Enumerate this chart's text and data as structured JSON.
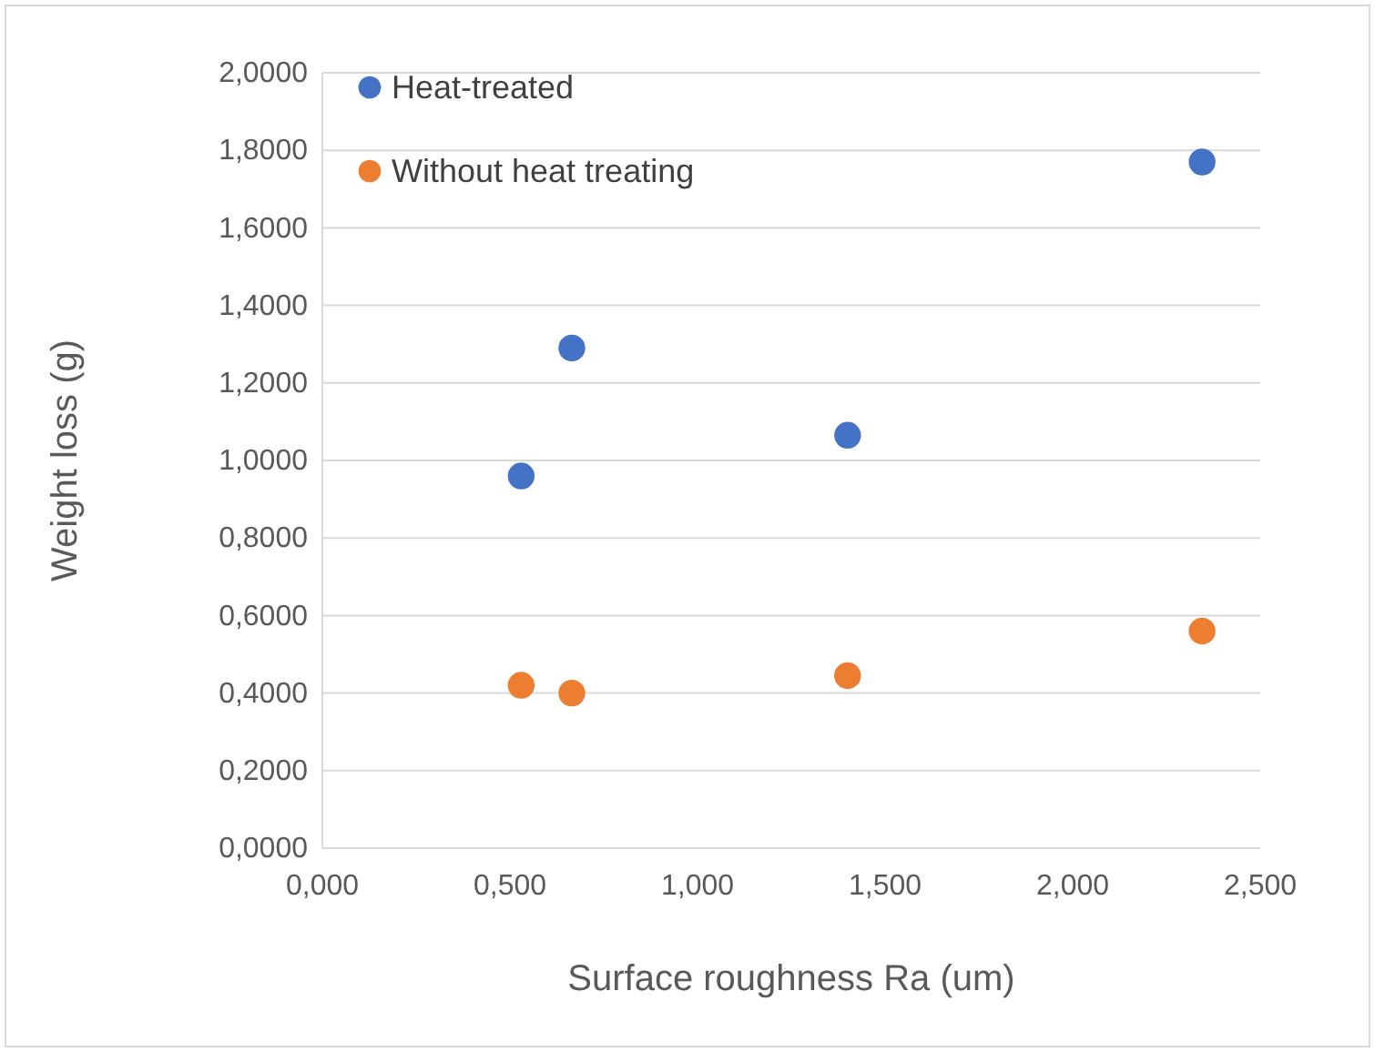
{
  "chart_data": {
    "type": "scatter",
    "xlabel": "Surface roughness Ra (um)",
    "ylabel": "Weight loss (g)",
    "xlim": [
      0,
      2.5
    ],
    "ylim": [
      0,
      2
    ],
    "xticks": [
      {
        "value": 0,
        "label": "0,000"
      },
      {
        "value": 0.5,
        "label": "0,500"
      },
      {
        "value": 1,
        "label": "1,000"
      },
      {
        "value": 1.5,
        "label": "1,500"
      },
      {
        "value": 2,
        "label": "2,000"
      },
      {
        "value": 2.5,
        "label": "2,500"
      }
    ],
    "yticks": [
      {
        "value": 0,
        "label": "0,0000"
      },
      {
        "value": 0.2,
        "label": "0,2000"
      },
      {
        "value": 0.4,
        "label": "0,4000"
      },
      {
        "value": 0.6,
        "label": "0,6000"
      },
      {
        "value": 0.8,
        "label": "0,8000"
      },
      {
        "value": 1,
        "label": "1,0000"
      },
      {
        "value": 1.2,
        "label": "1,2000"
      },
      {
        "value": 1.4,
        "label": "1,4000"
      },
      {
        "value": 1.6,
        "label": "1,6000"
      },
      {
        "value": 1.8,
        "label": "1,8000"
      },
      {
        "value": 2,
        "label": "2,0000"
      }
    ],
    "grid": "y",
    "legend": "top left",
    "marker": "circle",
    "series": [
      {
        "name": "Heat-treated",
        "color": "#4472c4",
        "x": [
          0.53,
          0.665,
          1.4,
          2.345
        ],
        "values": [
          0.96,
          1.29,
          1.065,
          1.77
        ]
      },
      {
        "name": "Without heat treating",
        "color": "#ed7d31",
        "x": [
          0.53,
          0.665,
          1.4,
          2.345
        ],
        "values": [
          0.42,
          0.4,
          0.445,
          0.56
        ]
      }
    ]
  }
}
